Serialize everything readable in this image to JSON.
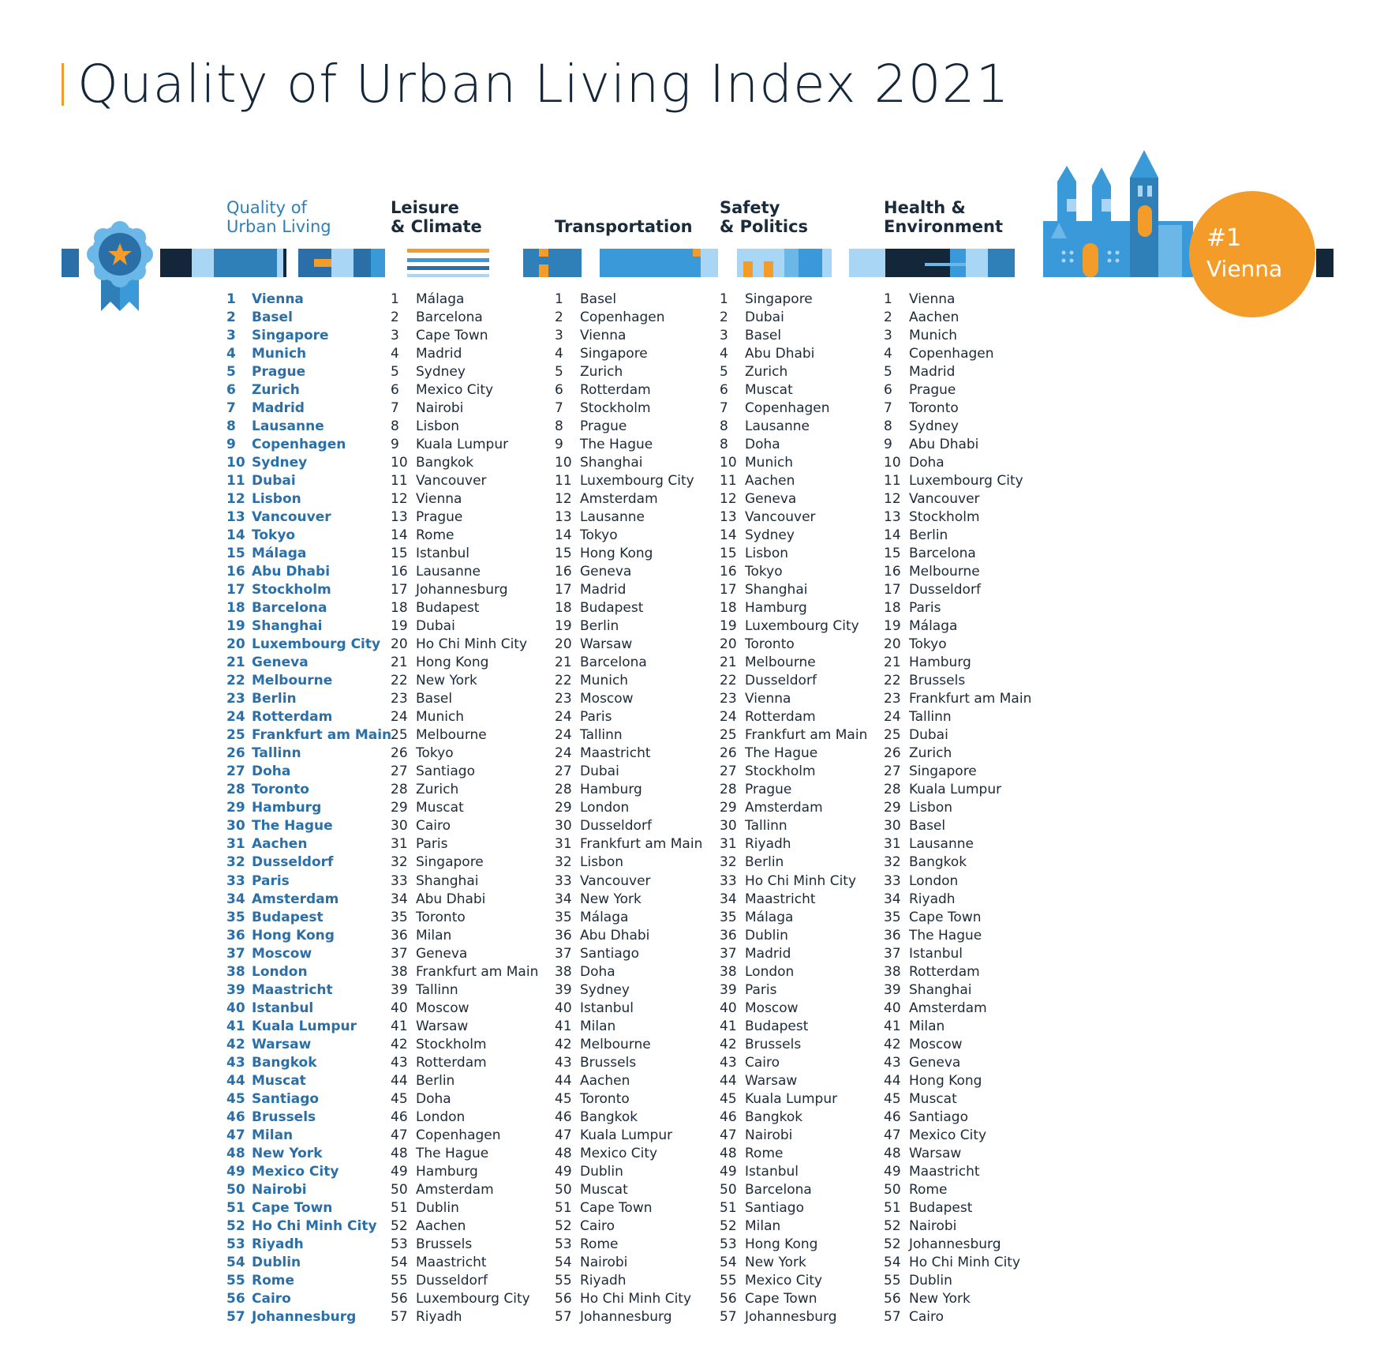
{
  "title": "Quality of Urban Living Index 2021",
  "headers": {
    "quality": [
      "Quality of",
      "Urban Living"
    ],
    "leisure": [
      "Leisure",
      "& Climate"
    ],
    "transport": [
      "Transportation"
    ],
    "safety": [
      "Safety",
      "& Politics"
    ],
    "health": [
      "Health &",
      "Environment"
    ]
  },
  "winner": {
    "rank": "#1",
    "city": "Vienna"
  },
  "colors": {
    "accent_orange": "#f39c2a",
    "primary_blue": "#2f7fb8",
    "dark_navy": "#14263a",
    "light_blue": "#a9d6f5",
    "mid_blue": "#3a9ad9"
  },
  "icons": [
    "award-ribbon-icon",
    "castle-skyline-icon"
  ],
  "columns": {
    "quality": [
      [
        "1",
        "Vienna"
      ],
      [
        "2",
        "Basel"
      ],
      [
        "3",
        "Singapore"
      ],
      [
        "4",
        "Munich"
      ],
      [
        "5",
        "Prague"
      ],
      [
        "6",
        "Zurich"
      ],
      [
        "7",
        "Madrid"
      ],
      [
        "8",
        "Lausanne"
      ],
      [
        "9",
        "Copenhagen"
      ],
      [
        "10",
        "Sydney"
      ],
      [
        "11",
        "Dubai"
      ],
      [
        "12",
        "Lisbon"
      ],
      [
        "13",
        "Vancouver"
      ],
      [
        "14",
        "Tokyo"
      ],
      [
        "15",
        "Málaga"
      ],
      [
        "16",
        "Abu Dhabi"
      ],
      [
        "17",
        "Stockholm"
      ],
      [
        "18",
        "Barcelona"
      ],
      [
        "19",
        "Shanghai"
      ],
      [
        "20",
        "Luxembourg City"
      ],
      [
        "21",
        "Geneva"
      ],
      [
        "22",
        "Melbourne"
      ],
      [
        "23",
        "Berlin"
      ],
      [
        "24",
        "Rotterdam"
      ],
      [
        "25",
        "Frankfurt am Main"
      ],
      [
        "26",
        "Tallinn"
      ],
      [
        "27",
        "Doha"
      ],
      [
        "28",
        "Toronto"
      ],
      [
        "29",
        "Hamburg"
      ],
      [
        "30",
        "The Hague"
      ],
      [
        "31",
        "Aachen"
      ],
      [
        "32",
        "Dusseldorf"
      ],
      [
        "33",
        "Paris"
      ],
      [
        "34",
        "Amsterdam"
      ],
      [
        "35",
        "Budapest"
      ],
      [
        "36",
        "Hong Kong"
      ],
      [
        "37",
        "Moscow"
      ],
      [
        "38",
        "London"
      ],
      [
        "39",
        "Maastricht"
      ],
      [
        "40",
        "Istanbul"
      ],
      [
        "41",
        "Kuala Lumpur"
      ],
      [
        "42",
        "Warsaw"
      ],
      [
        "43",
        "Bangkok"
      ],
      [
        "44",
        "Muscat"
      ],
      [
        "45",
        "Santiago"
      ],
      [
        "46",
        "Brussels"
      ],
      [
        "47",
        "Milan"
      ],
      [
        "48",
        "New York"
      ],
      [
        "49",
        "Mexico City"
      ],
      [
        "50",
        "Nairobi"
      ],
      [
        "51",
        "Cape Town"
      ],
      [
        "52",
        "Ho Chi Minh City"
      ],
      [
        "53",
        "Riyadh"
      ],
      [
        "54",
        "Dublin"
      ],
      [
        "55",
        "Rome"
      ],
      [
        "56",
        "Cairo"
      ],
      [
        "57",
        "Johannesburg"
      ]
    ],
    "leisure": [
      [
        "1",
        "Málaga"
      ],
      [
        "2",
        "Barcelona"
      ],
      [
        "3",
        "Cape Town"
      ],
      [
        "4",
        "Madrid"
      ],
      [
        "5",
        "Sydney"
      ],
      [
        "6",
        "Mexico City"
      ],
      [
        "7",
        "Nairobi"
      ],
      [
        "8",
        "Lisbon"
      ],
      [
        "9",
        "Kuala Lumpur"
      ],
      [
        "10",
        "Bangkok"
      ],
      [
        "11",
        "Vancouver"
      ],
      [
        "12",
        "Vienna"
      ],
      [
        "13",
        "Prague"
      ],
      [
        "14",
        "Rome"
      ],
      [
        "15",
        "Istanbul"
      ],
      [
        "16",
        "Lausanne"
      ],
      [
        "17",
        "Johannesburg"
      ],
      [
        "18",
        "Budapest"
      ],
      [
        "19",
        "Dubai"
      ],
      [
        "20",
        "Ho Chi Minh City"
      ],
      [
        "21",
        "Hong Kong"
      ],
      [
        "22",
        "New York"
      ],
      [
        "23",
        "Basel"
      ],
      [
        "24",
        "Munich"
      ],
      [
        "25",
        "Melbourne"
      ],
      [
        "26",
        "Tokyo"
      ],
      [
        "27",
        "Santiago"
      ],
      [
        "28",
        "Zurich"
      ],
      [
        "29",
        "Muscat"
      ],
      [
        "30",
        "Cairo"
      ],
      [
        "31",
        "Paris"
      ],
      [
        "32",
        "Singapore"
      ],
      [
        "33",
        "Shanghai"
      ],
      [
        "34",
        "Abu Dhabi"
      ],
      [
        "35",
        "Toronto"
      ],
      [
        "36",
        "Milan"
      ],
      [
        "37",
        "Geneva"
      ],
      [
        "38",
        "Frankfurt am Main"
      ],
      [
        "39",
        "Tallinn"
      ],
      [
        "40",
        "Moscow"
      ],
      [
        "41",
        "Warsaw"
      ],
      [
        "42",
        "Stockholm"
      ],
      [
        "43",
        "Rotterdam"
      ],
      [
        "44",
        "Berlin"
      ],
      [
        "45",
        "Doha"
      ],
      [
        "46",
        "London"
      ],
      [
        "47",
        "Copenhagen"
      ],
      [
        "48",
        "The Hague"
      ],
      [
        "49",
        "Hamburg"
      ],
      [
        "50",
        "Amsterdam"
      ],
      [
        "51",
        "Dublin"
      ],
      [
        "52",
        "Aachen"
      ],
      [
        "53",
        "Brussels"
      ],
      [
        "54",
        "Maastricht"
      ],
      [
        "55",
        "Dusseldorf"
      ],
      [
        "56",
        "Luxembourg City"
      ],
      [
        "57",
        "Riyadh"
      ]
    ],
    "transport": [
      [
        "1",
        "Basel"
      ],
      [
        "2",
        "Copenhagen"
      ],
      [
        "3",
        "Vienna"
      ],
      [
        "4",
        "Singapore"
      ],
      [
        "5",
        "Zurich"
      ],
      [
        "6",
        "Rotterdam"
      ],
      [
        "7",
        "Stockholm"
      ],
      [
        "8",
        "Prague"
      ],
      [
        "9",
        "The Hague"
      ],
      [
        "10",
        "Shanghai"
      ],
      [
        "11",
        "Luxembourg City"
      ],
      [
        "12",
        "Amsterdam"
      ],
      [
        "13",
        "Lausanne"
      ],
      [
        "14",
        "Tokyo"
      ],
      [
        "15",
        "Hong Kong"
      ],
      [
        "16",
        "Geneva"
      ],
      [
        "17",
        "Madrid"
      ],
      [
        "18",
        "Budapest"
      ],
      [
        "19",
        "Berlin"
      ],
      [
        "20",
        "Warsaw"
      ],
      [
        "21",
        "Barcelona"
      ],
      [
        "22",
        "Munich"
      ],
      [
        "23",
        "Moscow"
      ],
      [
        "24",
        "Paris"
      ],
      [
        "24",
        "Tallinn"
      ],
      [
        "24",
        "Maastricht"
      ],
      [
        "27",
        "Dubai"
      ],
      [
        "28",
        "Hamburg"
      ],
      [
        "29",
        "London"
      ],
      [
        "30",
        "Dusseldorf"
      ],
      [
        "31",
        "Frankfurt am Main"
      ],
      [
        "32",
        "Lisbon"
      ],
      [
        "33",
        "Vancouver"
      ],
      [
        "34",
        "New York"
      ],
      [
        "35",
        "Málaga"
      ],
      [
        "36",
        "Abu Dhabi"
      ],
      [
        "37",
        "Santiago"
      ],
      [
        "38",
        "Doha"
      ],
      [
        "39",
        "Sydney"
      ],
      [
        "40",
        "Istanbul"
      ],
      [
        "41",
        "Milan"
      ],
      [
        "42",
        "Melbourne"
      ],
      [
        "43",
        "Brussels"
      ],
      [
        "44",
        "Aachen"
      ],
      [
        "45",
        "Toronto"
      ],
      [
        "46",
        "Bangkok"
      ],
      [
        "47",
        "Kuala Lumpur"
      ],
      [
        "48",
        "Mexico City"
      ],
      [
        "49",
        "Dublin"
      ],
      [
        "50",
        "Muscat"
      ],
      [
        "51",
        "Cape Town"
      ],
      [
        "52",
        "Cairo"
      ],
      [
        "53",
        "Rome"
      ],
      [
        "54",
        "Nairobi"
      ],
      [
        "55",
        "Riyadh"
      ],
      [
        "56",
        "Ho Chi Minh City"
      ],
      [
        "57",
        "Johannesburg"
      ]
    ],
    "safety": [
      [
        "1",
        "Singapore"
      ],
      [
        "2",
        "Dubai"
      ],
      [
        "3",
        "Basel"
      ],
      [
        "4",
        "Abu Dhabi"
      ],
      [
        "5",
        "Zurich"
      ],
      [
        "6",
        "Muscat"
      ],
      [
        "7",
        "Copenhagen"
      ],
      [
        "8",
        "Lausanne"
      ],
      [
        "8",
        "Doha"
      ],
      [
        "10",
        "Munich"
      ],
      [
        "11",
        "Aachen"
      ],
      [
        "12",
        "Geneva"
      ],
      [
        "13",
        "Vancouver"
      ],
      [
        "14",
        "Sydney"
      ],
      [
        "15",
        "Lisbon"
      ],
      [
        "16",
        "Tokyo"
      ],
      [
        "17",
        "Shanghai"
      ],
      [
        "18",
        "Hamburg"
      ],
      [
        "19",
        "Luxembourg City"
      ],
      [
        "20",
        "Toronto"
      ],
      [
        "21",
        "Melbourne"
      ],
      [
        "22",
        "Dusseldorf"
      ],
      [
        "23",
        "Vienna"
      ],
      [
        "24",
        "Rotterdam"
      ],
      [
        "25",
        "Frankfurt am Main"
      ],
      [
        "26",
        "The Hague"
      ],
      [
        "27",
        "Stockholm"
      ],
      [
        "28",
        "Prague"
      ],
      [
        "29",
        "Amsterdam"
      ],
      [
        "30",
        "Tallinn"
      ],
      [
        "31",
        "Riyadh"
      ],
      [
        "32",
        "Berlin"
      ],
      [
        "33",
        "Ho Chi Minh City"
      ],
      [
        "34",
        "Maastricht"
      ],
      [
        "35",
        "Málaga"
      ],
      [
        "36",
        "Dublin"
      ],
      [
        "37",
        "Madrid"
      ],
      [
        "38",
        "London"
      ],
      [
        "39",
        "Paris"
      ],
      [
        "40",
        "Moscow"
      ],
      [
        "41",
        "Budapest"
      ],
      [
        "42",
        "Brussels"
      ],
      [
        "43",
        "Cairo"
      ],
      [
        "44",
        "Warsaw"
      ],
      [
        "45",
        "Kuala Lumpur"
      ],
      [
        "46",
        "Bangkok"
      ],
      [
        "47",
        "Nairobi"
      ],
      [
        "48",
        "Rome"
      ],
      [
        "49",
        "Istanbul"
      ],
      [
        "50",
        "Barcelona"
      ],
      [
        "51",
        "Santiago"
      ],
      [
        "52",
        "Milan"
      ],
      [
        "53",
        "Hong Kong"
      ],
      [
        "54",
        "New York"
      ],
      [
        "55",
        "Mexico City"
      ],
      [
        "56",
        "Cape Town"
      ],
      [
        "57",
        "Johannesburg"
      ]
    ],
    "health": [
      [
        "1",
        "Vienna"
      ],
      [
        "2",
        "Aachen"
      ],
      [
        "3",
        "Munich"
      ],
      [
        "4",
        "Copenhagen"
      ],
      [
        "5",
        "Madrid"
      ],
      [
        "6",
        "Prague"
      ],
      [
        "7",
        "Toronto"
      ],
      [
        "8",
        "Sydney"
      ],
      [
        "9",
        "Abu Dhabi"
      ],
      [
        "10",
        "Doha"
      ],
      [
        "11",
        "Luxembourg City"
      ],
      [
        "12",
        "Vancouver"
      ],
      [
        "13",
        "Stockholm"
      ],
      [
        "14",
        "Berlin"
      ],
      [
        "15",
        "Barcelona"
      ],
      [
        "16",
        "Melbourne"
      ],
      [
        "17",
        "Dusseldorf"
      ],
      [
        "18",
        "Paris"
      ],
      [
        "19",
        "Málaga"
      ],
      [
        "20",
        "Tokyo"
      ],
      [
        "21",
        "Hamburg"
      ],
      [
        "22",
        "Brussels"
      ],
      [
        "23",
        "Frankfurt am Main"
      ],
      [
        "24",
        "Tallinn"
      ],
      [
        "25",
        "Dubai"
      ],
      [
        "26",
        "Zurich"
      ],
      [
        "27",
        "Singapore"
      ],
      [
        "28",
        "Kuala Lumpur"
      ],
      [
        "29",
        "Lisbon"
      ],
      [
        "30",
        "Basel"
      ],
      [
        "31",
        "Lausanne"
      ],
      [
        "32",
        "Bangkok"
      ],
      [
        "33",
        "London"
      ],
      [
        "34",
        "Riyadh"
      ],
      [
        "35",
        "Cape Town"
      ],
      [
        "36",
        "The Hague"
      ],
      [
        "37",
        "Istanbul"
      ],
      [
        "38",
        "Rotterdam"
      ],
      [
        "39",
        "Shanghai"
      ],
      [
        "40",
        "Amsterdam"
      ],
      [
        "41",
        "Milan"
      ],
      [
        "42",
        "Moscow"
      ],
      [
        "43",
        "Geneva"
      ],
      [
        "44",
        "Hong Kong"
      ],
      [
        "45",
        "Muscat"
      ],
      [
        "46",
        "Santiago"
      ],
      [
        "47",
        "Mexico City"
      ],
      [
        "48",
        "Warsaw"
      ],
      [
        "49",
        "Maastricht"
      ],
      [
        "50",
        "Rome"
      ],
      [
        "51",
        "Budapest"
      ],
      [
        "52",
        "Nairobi"
      ],
      [
        "52",
        "Johannesburg"
      ],
      [
        "54",
        "Ho Chi Minh City"
      ],
      [
        "55",
        "Dublin"
      ],
      [
        "56",
        "New York"
      ],
      [
        "57",
        "Cairo"
      ]
    ]
  }
}
